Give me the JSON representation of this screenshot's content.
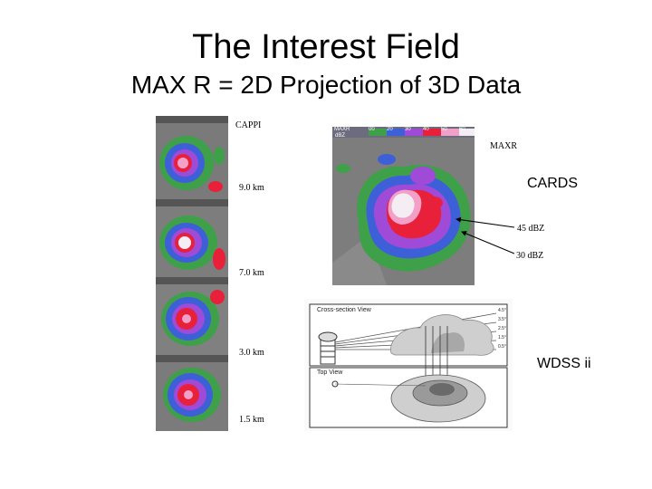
{
  "slide": {
    "title": "The Interest Field",
    "subtitle": "MAX R = 2D Projection of 3D Data"
  },
  "labels": {
    "cappi": "CAPPI",
    "maxr": "MAXR",
    "cards": "CARDS",
    "dbz45": "45 dBZ",
    "dbz30": "30 dBZ",
    "km9": "9.0 km",
    "km7": "7.0 km",
    "km3": "3.0 km",
    "km15": "1.5 km",
    "wdss": "WDSS ii"
  },
  "maxr_colorbar": {
    "field": "MAXR",
    "unit": "dBZ",
    "ticks": [
      "00",
      "20",
      "30",
      "40",
      "50",
      "60"
    ]
  },
  "cross_section": {
    "header": "Cross-section View",
    "top_view": "Top View",
    "levels": [
      "4.5°",
      "3.5°",
      "2.5°",
      "1.5°",
      "0.5°"
    ]
  },
  "colors": {
    "radar_bg": "#7d7d7d",
    "reflectivity_green": "#3fa04a",
    "reflectivity_blue": "#3d5fd8",
    "reflectivity_purple": "#a04ad8",
    "reflectivity_red": "#e8203a",
    "reflectivity_pink": "#f2a0c8",
    "reflectivity_white": "#f4eef4"
  }
}
